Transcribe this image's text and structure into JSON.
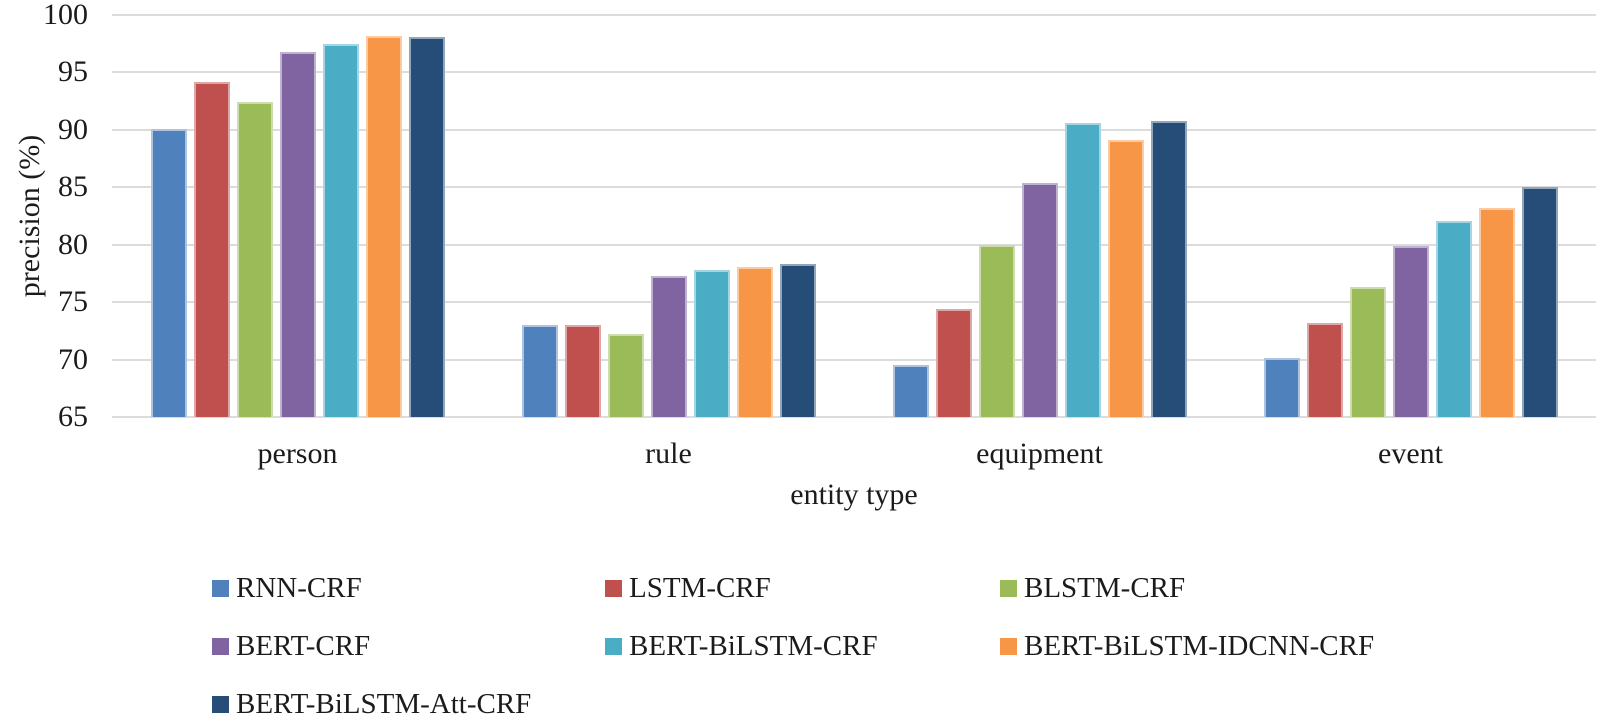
{
  "chart_data": {
    "type": "bar",
    "title": "",
    "xlabel": "entity type",
    "ylabel": "precision (%)",
    "ylim": [
      65,
      100
    ],
    "yticks": [
      65,
      70,
      75,
      80,
      85,
      90,
      95,
      100
    ],
    "categories": [
      "person",
      "rule",
      "equipment",
      "event"
    ],
    "series": [
      {
        "name": "RNN-CRF",
        "color": "#4F81BD",
        "border": "#AEC3DE",
        "values": [
          90.1,
          73.0,
          69.5,
          70.1
        ]
      },
      {
        "name": "LSTM-CRF",
        "color": "#C0504D",
        "border": "#DCA7A5",
        "values": [
          94.2,
          73.0,
          74.4,
          73.2
        ]
      },
      {
        "name": "BLSTM-CRF",
        "color": "#9BBB59",
        "border": "#CCDCAC",
        "values": [
          92.4,
          72.2,
          80.0,
          76.3
        ]
      },
      {
        "name": "BERT-CRF",
        "color": "#8064A2",
        "border": "#BFB1D0",
        "values": [
          96.8,
          77.3,
          85.4,
          79.9
        ]
      },
      {
        "name": "BERT-BiLSTM-CRF",
        "color": "#4BACC6",
        "border": "#A5D5E2",
        "values": [
          97.5,
          77.8,
          90.6,
          82.1
        ]
      },
      {
        "name": "BERT-BiLSTM-IDCNN-CRF",
        "color": "#F79646",
        "border": "#FBCAA2",
        "values": [
          98.2,
          78.1,
          89.1,
          83.2
        ]
      },
      {
        "name": "BERT-BiLSTM-Att-CRF",
        "color": "#264D77",
        "border": "#92A6BB",
        "values": [
          98.1,
          78.3,
          90.8,
          85.0
        ]
      }
    ],
    "grid": true,
    "legend_position": "bottom",
    "legend_columns": 3,
    "gridline_color": "#dcdcdc",
    "text_color": "#1b1b1b"
  }
}
